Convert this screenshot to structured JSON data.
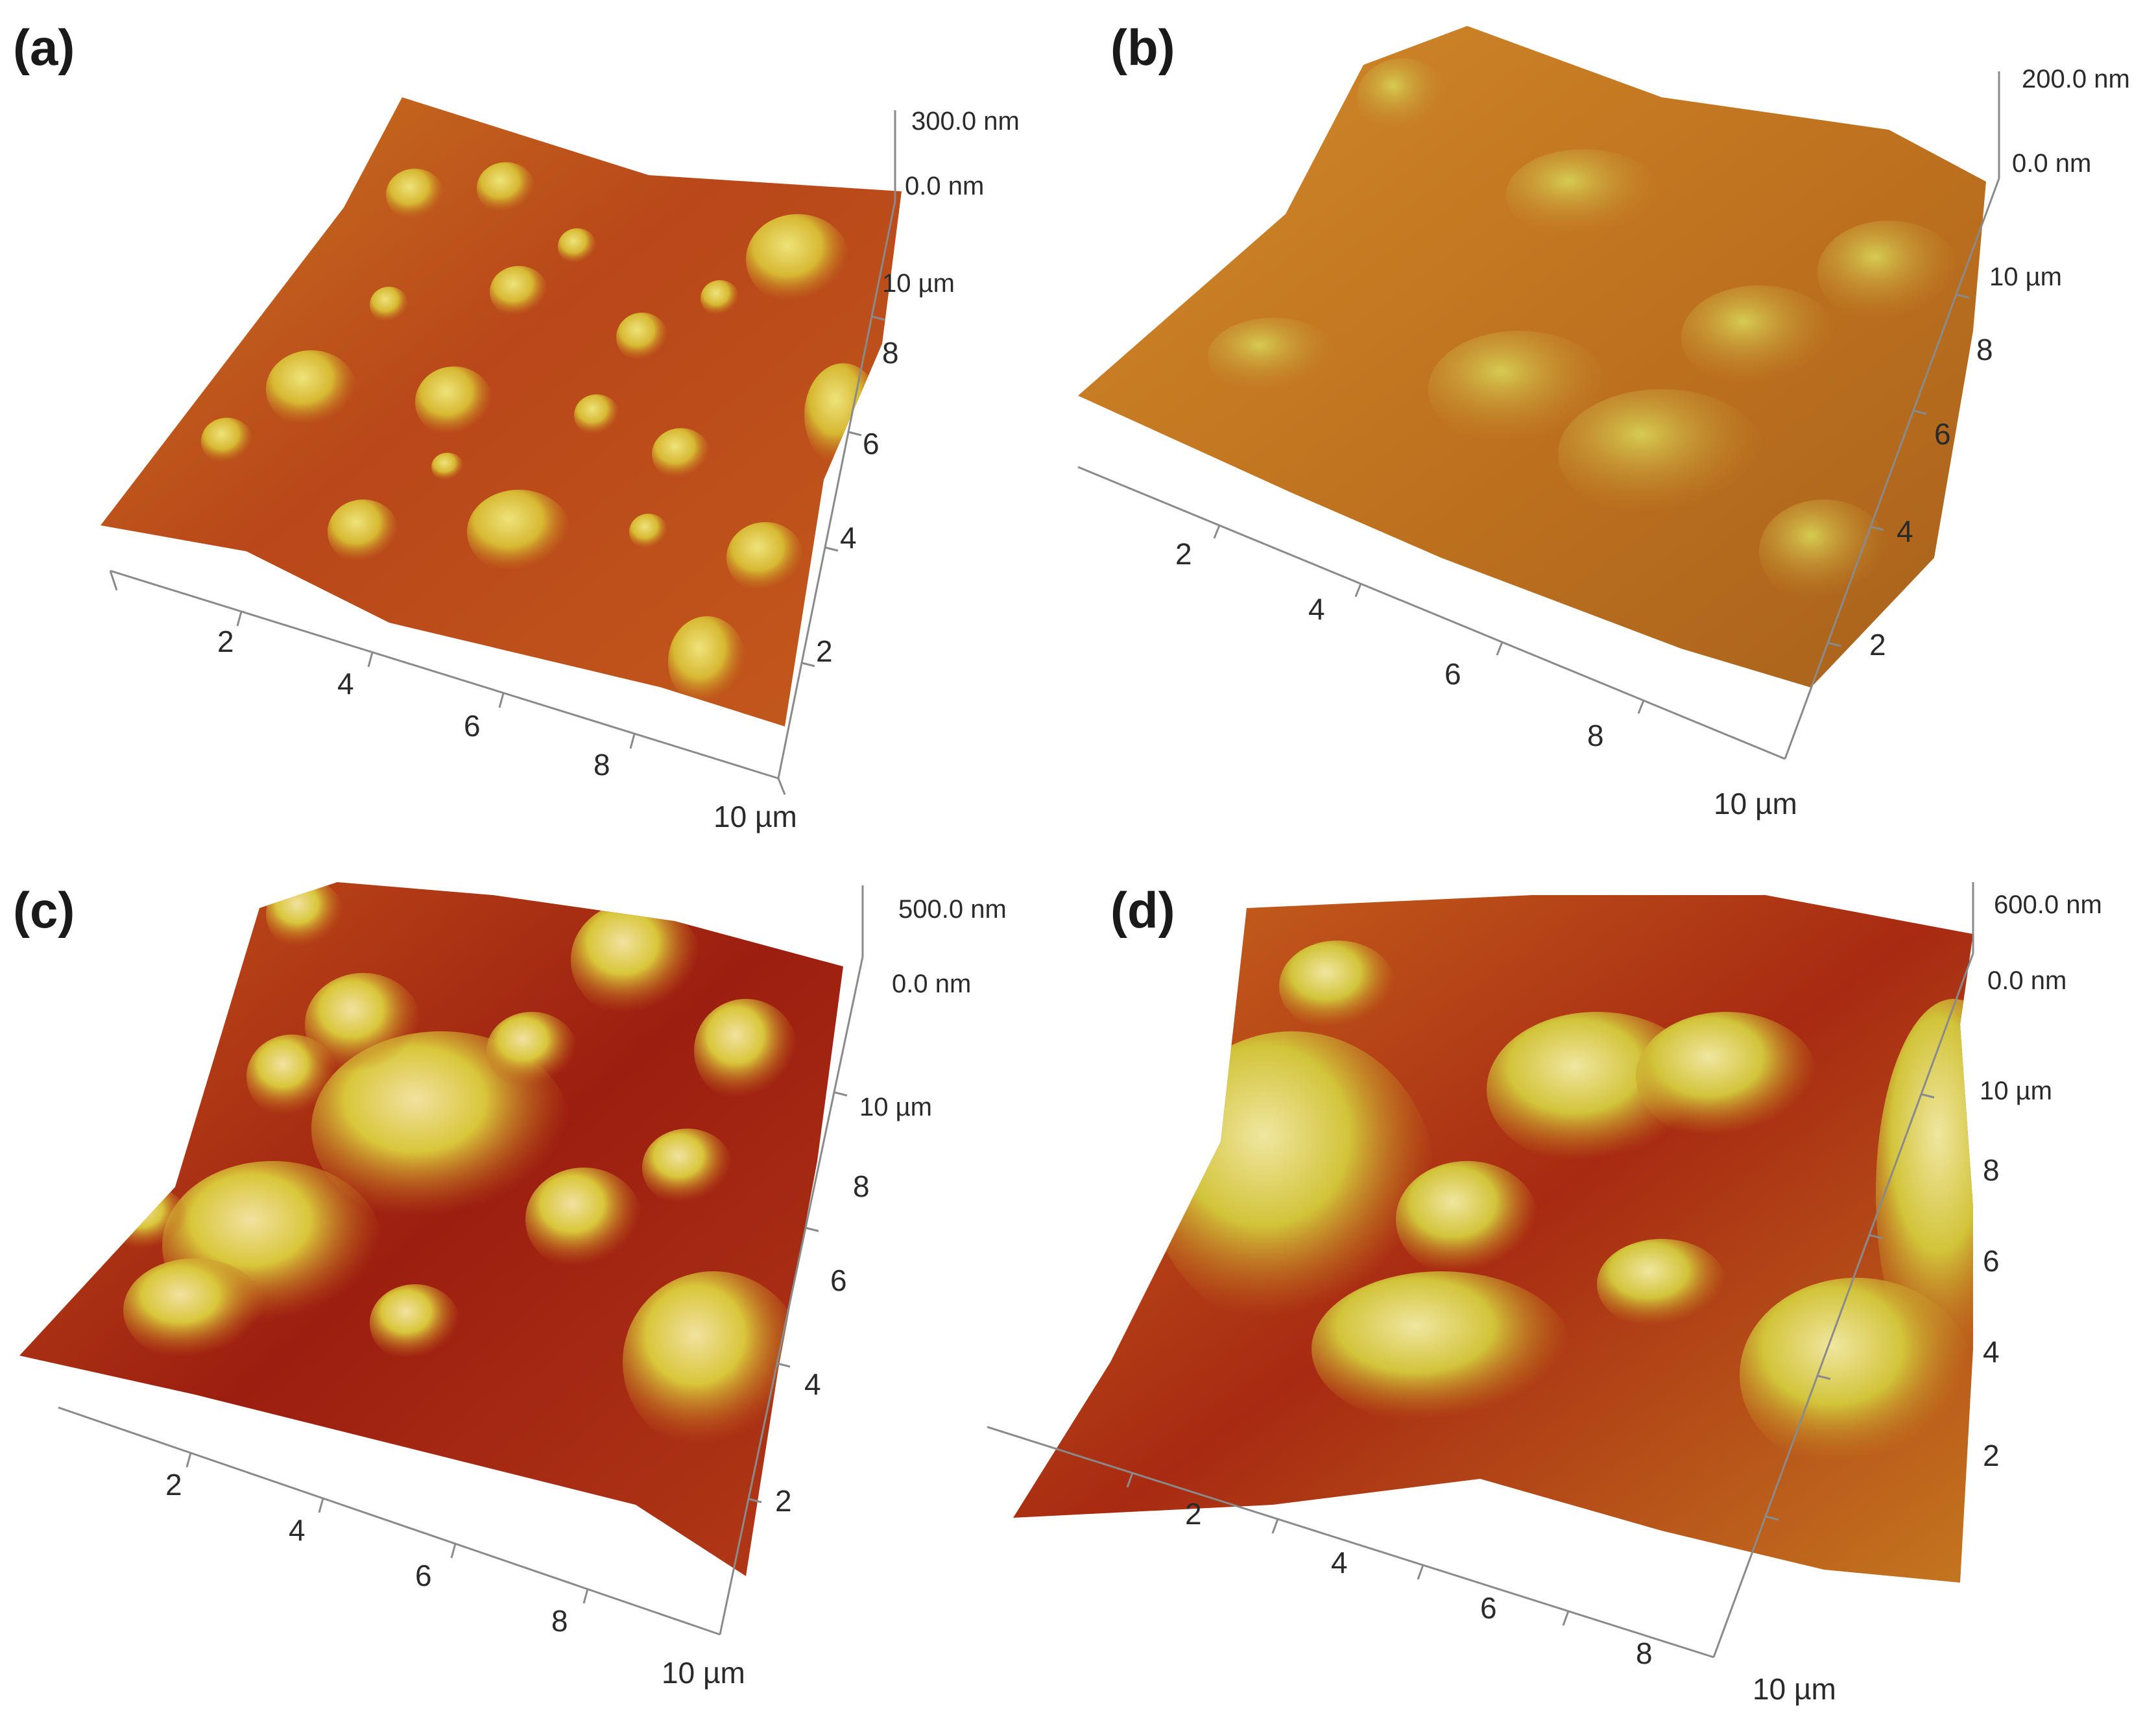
{
  "figure": {
    "panels": [
      {
        "id": "a",
        "label": "(a)",
        "z_max": "300.0 nm",
        "z_min": "0.0 nm",
        "y_end": "10 µm",
        "y_ticks": [
          "8",
          "6",
          "4",
          "2"
        ],
        "x_ticks": [
          "2",
          "4",
          "6",
          "8"
        ],
        "x_end": "10 µm",
        "surface": "fine, dense hemispherical nodules"
      },
      {
        "id": "b",
        "label": "(b)",
        "z_max": "200.0 nm",
        "z_min": "0.0 nm",
        "y_end": "10 µm",
        "y_ticks": [
          "8",
          "6",
          "4",
          "2"
        ],
        "x_ticks": [
          "2",
          "4",
          "6",
          "8"
        ],
        "x_end": "10 µm",
        "surface": "rough, granular texture"
      },
      {
        "id": "c",
        "label": "(c)",
        "z_max": "500.0 nm",
        "z_min": "0.0 nm",
        "y_end": "10 µm",
        "y_ticks": [
          "8",
          "6",
          "4",
          "2"
        ],
        "x_ticks": [
          "2",
          "4",
          "6",
          "8"
        ],
        "x_end": "10 µm",
        "surface": "large agglomerated spherical grains"
      },
      {
        "id": "d",
        "label": "(d)",
        "z_max": "600.0 nm",
        "z_min": "0.0 nm",
        "y_end": "10 µm",
        "y_ticks": [
          "8",
          "6",
          "4",
          "2"
        ],
        "x_ticks": [
          "2",
          "4",
          "6",
          "8"
        ],
        "x_end": "10 µm",
        "surface": "broad domes with layered ridges"
      }
    ],
    "colormap": [
      "#7a0c0c",
      "#b3331a",
      "#d8661f",
      "#e8a12a",
      "#d9d23a",
      "#f5eca0"
    ]
  }
}
